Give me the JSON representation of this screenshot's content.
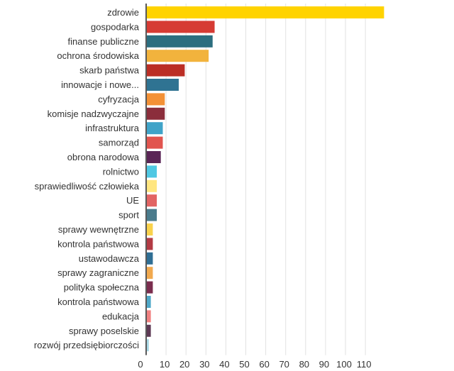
{
  "chart_data": {
    "type": "bar",
    "orientation": "horizontal",
    "categories": [
      "zdrowie",
      "gospodarka",
      "finanse publiczne",
      "ochrona środowiska",
      "skarb państwa",
      "innowacje i nowe...",
      "cyfryzacja",
      "komisje nadzwyczajne",
      "infrastruktura",
      "samorząd",
      "obrona narodowa",
      "rolnictwo",
      "sprawiedliwość człowieka",
      "UE",
      "sport",
      "sprawy wewnętrzne",
      "kontrola państwowa",
      "ustawodawcza",
      "sprawy zagraniczne",
      "polityka społeczna",
      "kontrola państwowa",
      "edukacja",
      "sprawy poselskie",
      "rozwój przedsiębiorczości"
    ],
    "values": [
      119,
      34,
      33,
      31,
      19,
      16,
      9,
      9,
      8,
      8,
      7,
      5,
      5,
      5,
      5,
      3,
      3,
      3,
      3,
      3,
      2,
      2,
      2,
      1
    ],
    "colors": [
      "#FFD300",
      "#D63B34",
      "#2C6E7F",
      "#F2B33D",
      "#BB2E25",
      "#2F7392",
      "#F39136",
      "#8B2E3C",
      "#3FA3C8",
      "#E1544E",
      "#5A2556",
      "#4FC8E3",
      "#FFE680",
      "#E26463",
      "#4A7B8C",
      "#F9D24C",
      "#B23A44",
      "#2F6E94",
      "#F1A94E",
      "#7A2D4E",
      "#4FA8C8",
      "#F08080",
      "#5E3A55",
      "#A8D8E6"
    ],
    "x_ticks": [
      "0",
      "10",
      "20",
      "30",
      "40",
      "50",
      "60",
      "70",
      "80",
      "90",
      "100",
      "110"
    ],
    "xlim": [
      0,
      120
    ],
    "grid": true,
    "title": "",
    "xlabel": "",
    "ylabel": ""
  }
}
